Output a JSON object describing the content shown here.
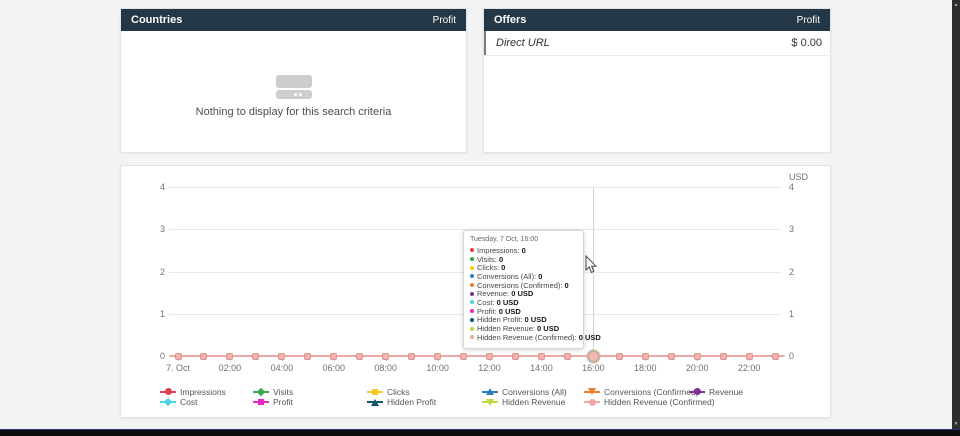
{
  "panels": {
    "countries": {
      "title": "Countries",
      "metric_label": "Profit",
      "empty_text": "Nothing to display for this search criteria"
    },
    "offers": {
      "title": "Offers",
      "metric_label": "Profit",
      "rows": [
        {
          "name": "Direct URL",
          "value": "$ 0.00"
        }
      ]
    }
  },
  "chart_data": {
    "type": "line",
    "unit": "USD",
    "x": [
      "00:00",
      "01:00",
      "02:00",
      "03:00",
      "04:00",
      "05:00",
      "06:00",
      "07:00",
      "08:00",
      "09:00",
      "10:00",
      "11:00",
      "12:00",
      "13:00",
      "14:00",
      "15:00",
      "16:00",
      "17:00",
      "18:00",
      "19:00",
      "20:00",
      "21:00",
      "22:00",
      "23:00"
    ],
    "x_tick_labels": [
      "7. Oct",
      "02:00",
      "04:00",
      "06:00",
      "08:00",
      "10:00",
      "12:00",
      "14:00",
      "16:00",
      "18:00",
      "20:00",
      "22:00"
    ],
    "y_ticks": [
      0,
      1,
      2,
      3,
      4
    ],
    "ylim": [
      0,
      4
    ],
    "grid": true,
    "legend_position": "bottom",
    "highlight_index": 16,
    "axis_line_color": "#eca9a4",
    "point_fill_color": "#f4b3ae",
    "point_border_color": "#dc938d",
    "series": [
      {
        "name": "Impressions",
        "color": "#e03e52",
        "marker": "circle",
        "values": [
          0,
          0,
          0,
          0,
          0,
          0,
          0,
          0,
          0,
          0,
          0,
          0,
          0,
          0,
          0,
          0,
          0,
          0,
          0,
          0,
          0,
          0,
          0,
          0
        ]
      },
      {
        "name": "Visits",
        "color": "#3aa648",
        "marker": "diamond",
        "values": [
          0,
          0,
          0,
          0,
          0,
          0,
          0,
          0,
          0,
          0,
          0,
          0,
          0,
          0,
          0,
          0,
          0,
          0,
          0,
          0,
          0,
          0,
          0,
          0
        ]
      },
      {
        "name": "Clicks",
        "color": "#f5c823",
        "marker": "square",
        "values": [
          0,
          0,
          0,
          0,
          0,
          0,
          0,
          0,
          0,
          0,
          0,
          0,
          0,
          0,
          0,
          0,
          0,
          0,
          0,
          0,
          0,
          0,
          0,
          0
        ]
      },
      {
        "name": "Conversions (All)",
        "color": "#2d7fc1",
        "marker": "triangle",
        "values": [
          0,
          0,
          0,
          0,
          0,
          0,
          0,
          0,
          0,
          0,
          0,
          0,
          0,
          0,
          0,
          0,
          0,
          0,
          0,
          0,
          0,
          0,
          0,
          0
        ]
      },
      {
        "name": "Conversions (Confirmed)",
        "color": "#ef7f2c",
        "marker": "triangle-down",
        "values": [
          0,
          0,
          0,
          0,
          0,
          0,
          0,
          0,
          0,
          0,
          0,
          0,
          0,
          0,
          0,
          0,
          0,
          0,
          0,
          0,
          0,
          0,
          0,
          0
        ]
      },
      {
        "name": "Revenue",
        "color": "#7e2f92",
        "marker": "circle",
        "values": [
          0,
          0,
          0,
          0,
          0,
          0,
          0,
          0,
          0,
          0,
          0,
          0,
          0,
          0,
          0,
          0,
          0,
          0,
          0,
          0,
          0,
          0,
          0,
          0
        ]
      },
      {
        "name": "Cost",
        "color": "#4ed2e8",
        "marker": "diamond",
        "values": [
          0,
          0,
          0,
          0,
          0,
          0,
          0,
          0,
          0,
          0,
          0,
          0,
          0,
          0,
          0,
          0,
          0,
          0,
          0,
          0,
          0,
          0,
          0,
          0
        ]
      },
      {
        "name": "Profit",
        "color": "#e928c0",
        "marker": "square",
        "values": [
          0,
          0,
          0,
          0,
          0,
          0,
          0,
          0,
          0,
          0,
          0,
          0,
          0,
          0,
          0,
          0,
          0,
          0,
          0,
          0,
          0,
          0,
          0,
          0
        ]
      },
      {
        "name": "Hidden Profit",
        "color": "#0e536f",
        "marker": "triangle",
        "values": [
          0,
          0,
          0,
          0,
          0,
          0,
          0,
          0,
          0,
          0,
          0,
          0,
          0,
          0,
          0,
          0,
          0,
          0,
          0,
          0,
          0,
          0,
          0,
          0
        ]
      },
      {
        "name": "Hidden Revenue",
        "color": "#c2d83e",
        "marker": "triangle-down",
        "values": [
          0,
          0,
          0,
          0,
          0,
          0,
          0,
          0,
          0,
          0,
          0,
          0,
          0,
          0,
          0,
          0,
          0,
          0,
          0,
          0,
          0,
          0,
          0,
          0
        ]
      },
      {
        "name": "Hidden Revenue (Confirmed)",
        "color": "#f2a8a3",
        "marker": "circle",
        "values": [
          0,
          0,
          0,
          0,
          0,
          0,
          0,
          0,
          0,
          0,
          0,
          0,
          0,
          0,
          0,
          0,
          0,
          0,
          0,
          0,
          0,
          0,
          0,
          0
        ]
      }
    ]
  },
  "tooltip": {
    "title": "Tuesday, 7 Oct, 16:00",
    "items": [
      {
        "label": "Impressions",
        "value": "0"
      },
      {
        "label": "Visits",
        "value": "0"
      },
      {
        "label": "Clicks",
        "value": "0"
      },
      {
        "label": "Conversions (All)",
        "value": "0"
      },
      {
        "label": "Conversions (Confirmed)",
        "value": "0"
      },
      {
        "label": "Revenue",
        "value": "0 USD"
      },
      {
        "label": "Cost",
        "value": "0 USD"
      },
      {
        "label": "Profit",
        "value": "0 USD"
      },
      {
        "label": "Hidden Profit",
        "value": "0 USD"
      },
      {
        "label": "Hidden Revenue",
        "value": "0 USD"
      },
      {
        "label": "Hidden Revenue (Confirmed)",
        "value": "0 USD"
      }
    ]
  },
  "scrollbar": {
    "up_glyph": "▲",
    "down_glyph": "▼"
  }
}
